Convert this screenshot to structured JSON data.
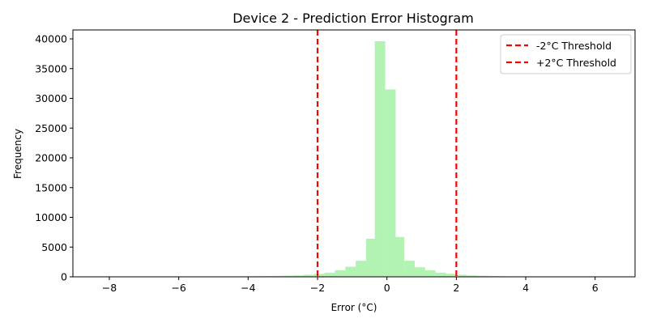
{
  "chart_data": {
    "type": "bar",
    "title": "Device 2 - Prediction Error Histogram",
    "xlabel": "Error (°C)",
    "ylabel": "Frequency",
    "xlim": [
      -9.05,
      7.15
    ],
    "ylim": [
      0,
      41500
    ],
    "xticks": [
      -8,
      -6,
      -4,
      -2,
      0,
      2,
      4,
      6
    ],
    "yticks": [
      0,
      5000,
      10000,
      15000,
      20000,
      25000,
      30000,
      35000,
      40000
    ],
    "bin_width": 0.3,
    "bins": [
      {
        "x0": -8.4,
        "count": 30
      },
      {
        "x0": -8.1,
        "count": 30
      },
      {
        "x0": -7.8,
        "count": 30
      },
      {
        "x0": -7.5,
        "count": 30
      },
      {
        "x0": -7.2,
        "count": 30
      },
      {
        "x0": -6.9,
        "count": 30
      },
      {
        "x0": -6.6,
        "count": 30
      },
      {
        "x0": -6.3,
        "count": 30
      },
      {
        "x0": -6.0,
        "count": 30
      },
      {
        "x0": -5.7,
        "count": 30
      },
      {
        "x0": -5.4,
        "count": 30
      },
      {
        "x0": -5.1,
        "count": 30
      },
      {
        "x0": -4.8,
        "count": 60
      },
      {
        "x0": -4.5,
        "count": 60
      },
      {
        "x0": -4.2,
        "count": 80
      },
      {
        "x0": -3.9,
        "count": 100
      },
      {
        "x0": -3.6,
        "count": 120
      },
      {
        "x0": -3.3,
        "count": 150
      },
      {
        "x0": -3.0,
        "count": 200
      },
      {
        "x0": -2.7,
        "count": 250
      },
      {
        "x0": -2.4,
        "count": 350
      },
      {
        "x0": -2.1,
        "count": 500
      },
      {
        "x0": -1.8,
        "count": 700
      },
      {
        "x0": -1.5,
        "count": 1100
      },
      {
        "x0": -1.2,
        "count": 1700
      },
      {
        "x0": -0.9,
        "count": 2700
      },
      {
        "x0": -0.6,
        "count": 6400
      },
      {
        "x0": -0.35,
        "count": 39600
      },
      {
        "x0": -0.05,
        "count": 31500
      },
      {
        "x0": 0.2,
        "count": 6700
      },
      {
        "x0": 0.5,
        "count": 2700
      },
      {
        "x0": 0.8,
        "count": 1600
      },
      {
        "x0": 1.1,
        "count": 1100
      },
      {
        "x0": 1.4,
        "count": 700
      },
      {
        "x0": 1.7,
        "count": 500
      },
      {
        "x0": 2.0,
        "count": 350
      },
      {
        "x0": 2.3,
        "count": 250
      },
      {
        "x0": 2.6,
        "count": 180
      },
      {
        "x0": 2.9,
        "count": 130
      },
      {
        "x0": 3.2,
        "count": 100
      },
      {
        "x0": 3.5,
        "count": 80
      },
      {
        "x0": 3.8,
        "count": 60
      },
      {
        "x0": 4.1,
        "count": 50
      },
      {
        "x0": 4.4,
        "count": 60
      },
      {
        "x0": 4.7,
        "count": 30
      },
      {
        "x0": 5.0,
        "count": 30
      },
      {
        "x0": 5.3,
        "count": 30
      },
      {
        "x0": 5.6,
        "count": 30
      },
      {
        "x0": 5.9,
        "count": 30
      },
      {
        "x0": 6.2,
        "count": 30
      }
    ],
    "thresholds": [
      {
        "label": "-2°C Threshold",
        "x": -2
      },
      {
        "label": "+2°C Threshold",
        "x": 2
      }
    ],
    "legend_position": "top-right",
    "bar_color": "#b2f2b2",
    "threshold_color": "#ff0000"
  }
}
